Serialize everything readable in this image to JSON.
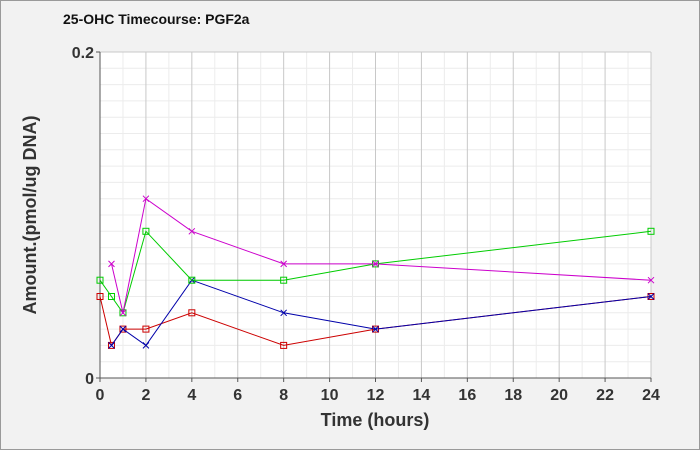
{
  "chart_data": {
    "type": "line",
    "title": "25-OHC Timecourse: PGF2a",
    "xlabel": "Time (hours)",
    "ylabel": "Amount.(pmol/ug DNA)",
    "xlim": [
      0,
      24
    ],
    "ylim": [
      0,
      0.2
    ],
    "x_ticks": [
      "0",
      "2",
      "4",
      "6",
      "8",
      "10",
      "12",
      "14",
      "16",
      "18",
      "20",
      "22",
      "24"
    ],
    "y_ticks": [
      "0",
      "0.2"
    ],
    "grid": true,
    "series": [
      {
        "color": "#cc0000",
        "marker": "square",
        "points": [
          [
            0,
            0.05
          ],
          [
            0.5,
            0.02
          ],
          [
            1,
            0.03
          ],
          [
            2,
            0.03
          ],
          [
            4,
            0.04
          ],
          [
            8,
            0.02
          ],
          [
            12,
            0.03
          ],
          [
            24,
            0.05
          ]
        ]
      },
      {
        "color": "#0000aa",
        "marker": "x",
        "points": [
          [
            0.5,
            0.02
          ],
          [
            1,
            0.03
          ],
          [
            2,
            0.02
          ],
          [
            4,
            0.06
          ],
          [
            8,
            0.04
          ],
          [
            12,
            0.03
          ],
          [
            24,
            0.05
          ]
        ]
      },
      {
        "color": "#00cc00",
        "marker": "square",
        "points": [
          [
            0,
            0.06
          ],
          [
            0.5,
            0.05
          ],
          [
            1,
            0.04
          ],
          [
            2,
            0.09
          ],
          [
            4,
            0.06
          ],
          [
            8,
            0.06
          ],
          [
            12,
            0.07
          ],
          [
            24,
            0.09
          ]
        ]
      },
      {
        "color": "#cc00cc",
        "marker": "x",
        "points": [
          [
            0.5,
            0.07
          ],
          [
            1,
            0.04
          ],
          [
            2,
            0.11
          ],
          [
            4,
            0.09
          ],
          [
            8,
            0.07
          ],
          [
            12,
            0.07
          ],
          [
            24,
            0.06
          ]
        ]
      }
    ]
  }
}
